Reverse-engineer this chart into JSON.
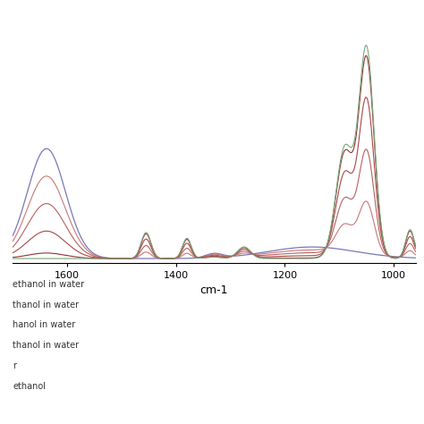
{
  "xlabel": "cm-1",
  "xmin": 960,
  "xmax": 1700,
  "background_color": "#ffffff",
  "legend_entries": [
    "ethanol in water",
    "thanol in water",
    "hanol in water",
    "thanol in water",
    "r",
    "ethanol"
  ],
  "line_colors": [
    "#c87878",
    "#b86060",
    "#a84848",
    "#903030",
    "#7878b8",
    "#78a878"
  ],
  "tick_fontsize": 8,
  "xlabel_fontsize": 9,
  "legend_fontsize": 7
}
